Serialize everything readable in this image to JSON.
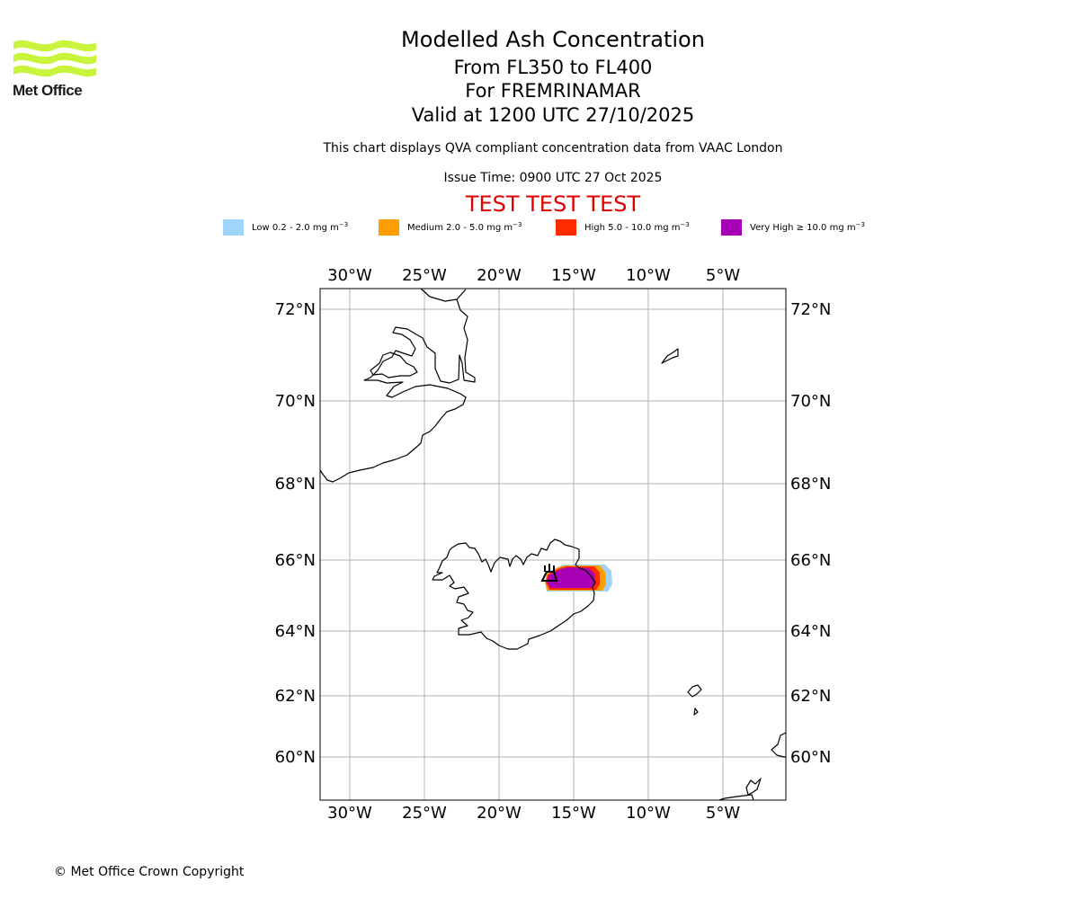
{
  "header": {
    "logo_text": "Met Office",
    "title": "Modelled Ash Concentration",
    "flight_levels": "From FL350 to FL400",
    "volcano_line": "For FREMRINAMAR",
    "valid_time": "Valid at 1200 UTC 27/10/2025",
    "description": "This chart displays QVA compliant concentration data from VAAC London",
    "issue_time": "Issue Time: 0900 UTC 27 Oct 2025",
    "test_banner": "TEST TEST TEST"
  },
  "legend": [
    {
      "label": "Low 0.2 - 2.0 mg m",
      "color": "#a0d4fa"
    },
    {
      "label": "Medium 2.0 - 5.0 mg m",
      "color": "#ff9e00"
    },
    {
      "label": "High 5.0 - 10.0 mg m",
      "color": "#ff2c00"
    },
    {
      "label": "Very High ≥ 10.0 mg m",
      "color": "#a800b4"
    }
  ],
  "legend_unit_exponent": "−3",
  "map": {
    "longitude_labels": [
      "30°W",
      "25°W",
      "20°W",
      "15°W",
      "10°W",
      "5°W"
    ],
    "latitude_labels": [
      "72°N",
      "70°N",
      "68°N",
      "66°N",
      "64°N",
      "62°N",
      "60°N"
    ],
    "volcano_marker": "volcano-icon",
    "colors": {
      "coast": "#000000",
      "grid": "#b0b0b0"
    }
  },
  "footer": {
    "copyright": "© Met Office Crown Copyright"
  }
}
